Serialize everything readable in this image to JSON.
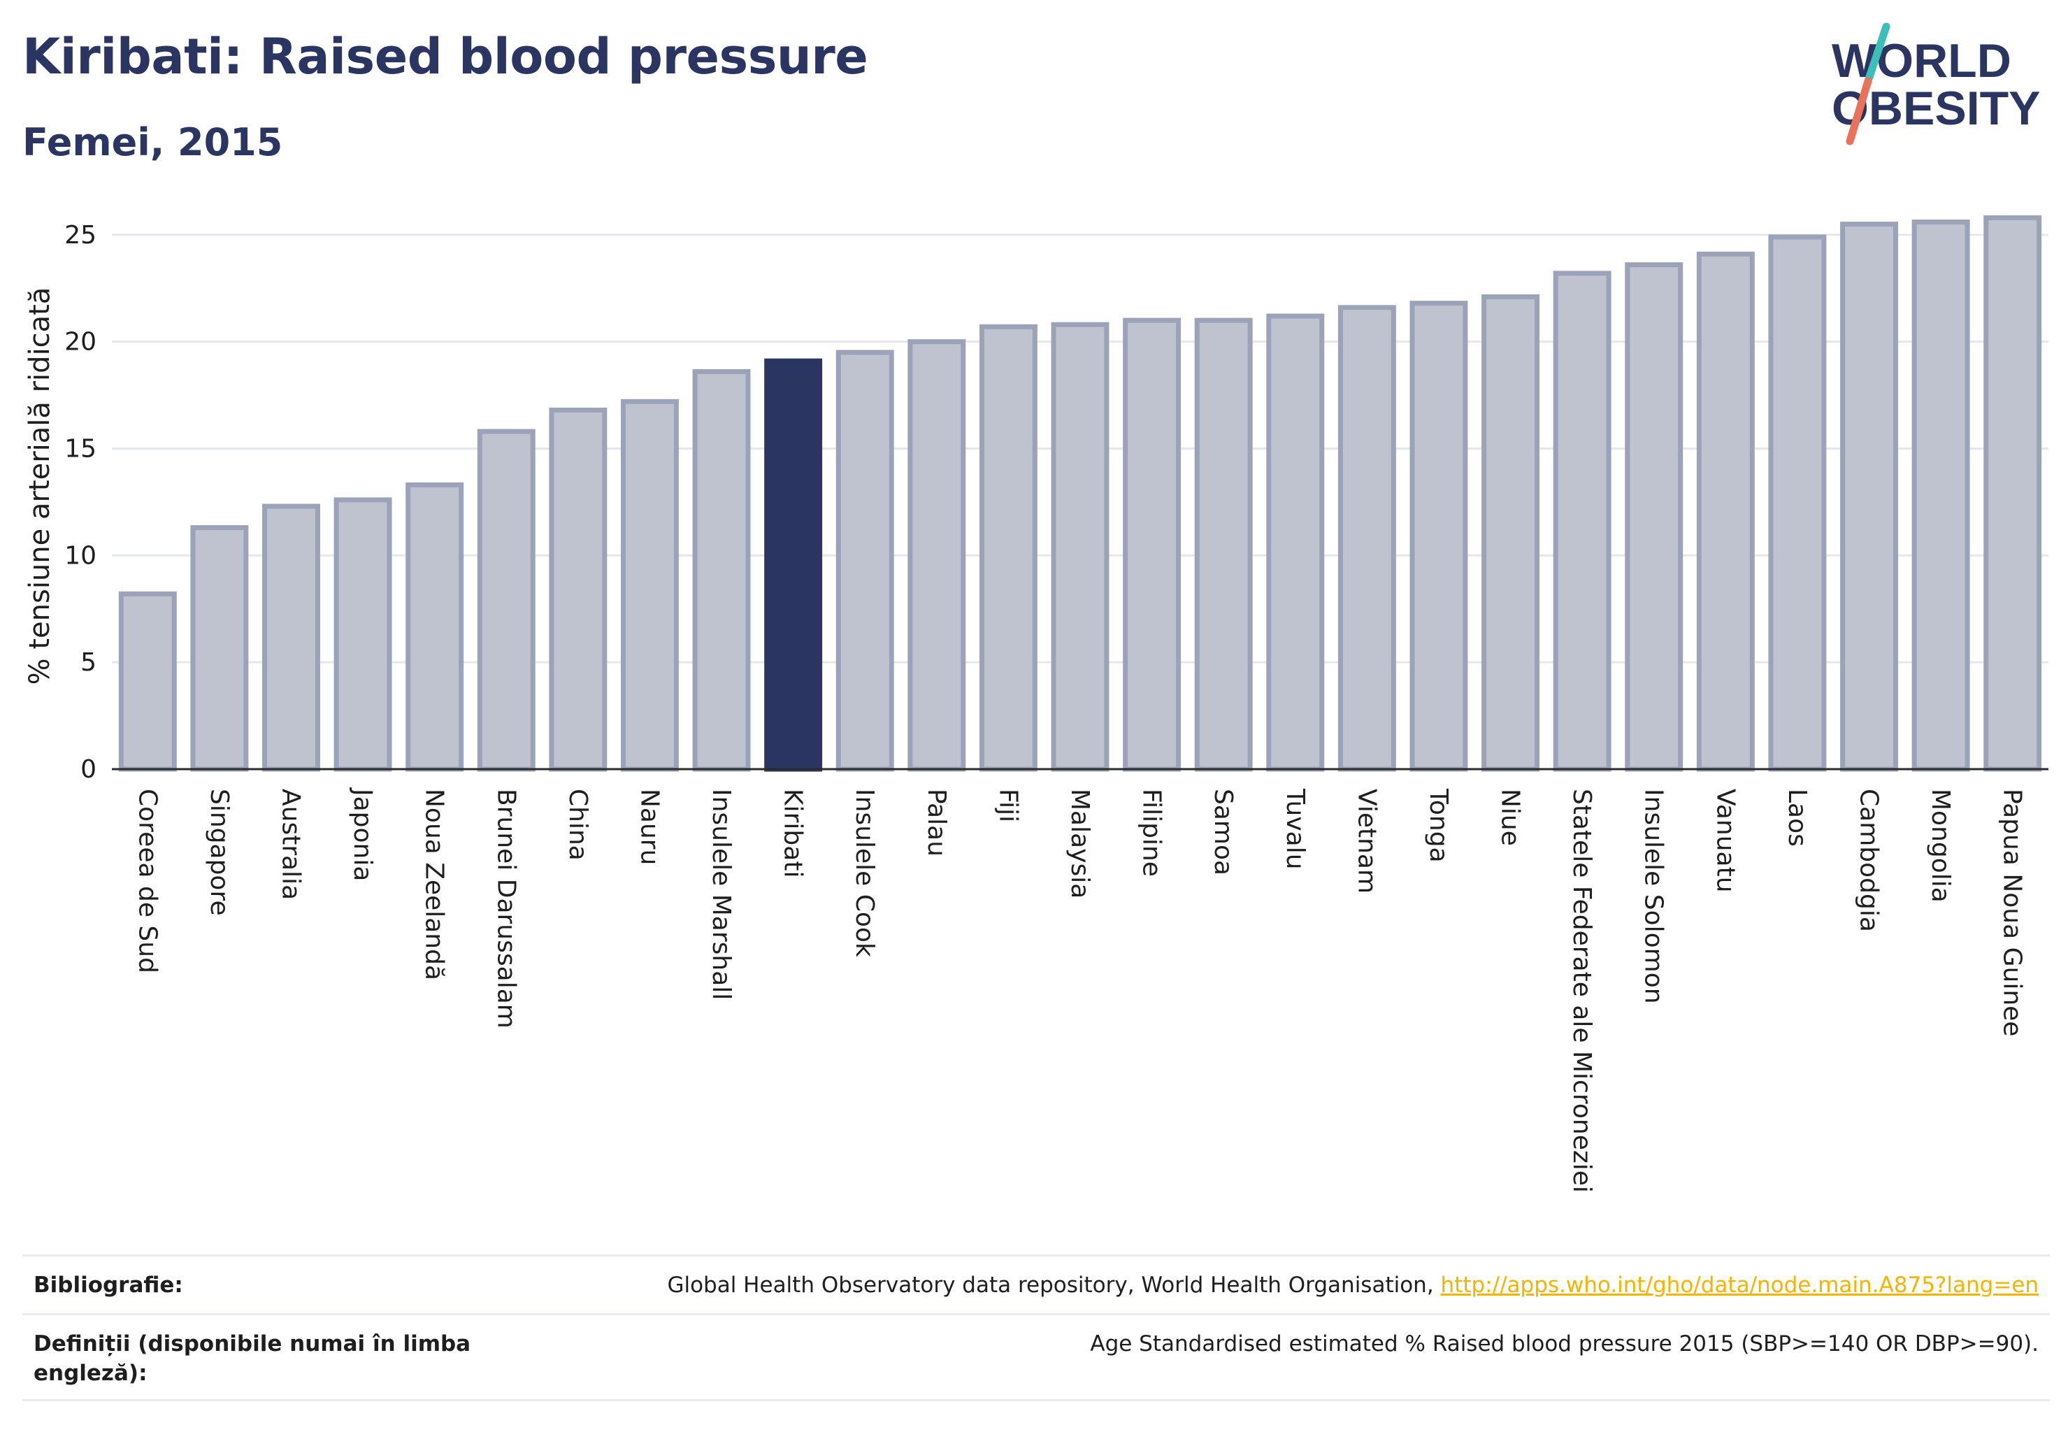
{
  "header": {
    "title": "Kiribati: Raised blood pressure",
    "subtitle": "Femei, 2015"
  },
  "logo": {
    "line1": "WORLD",
    "line2": "OBESITY",
    "accent_colors": [
      "#3cbfb8",
      "#e8735a"
    ]
  },
  "colors": {
    "highlight": "#2b3561",
    "bar_fill": "#bfc2cf",
    "bar_stroke": "#9ca2b8",
    "grid": "#e6e7ec",
    "axis": "#2b2b2b"
  },
  "chart_data": {
    "type": "bar",
    "title": "Kiribati: Raised blood pressure",
    "subtitle": "Femei, 2015",
    "xlabel": "",
    "ylabel": "% tensiune arterială ridicată",
    "ylim": [
      0,
      26.5
    ],
    "yticks": [
      0,
      5,
      10,
      15,
      20,
      25
    ],
    "grid": true,
    "highlight": "Kiribati",
    "categories": [
      "Coreea de Sud",
      "Singapore",
      "Australia",
      "Japonia",
      "Noua Zeelandă",
      "Brunei Darussalam",
      "China",
      "Nauru",
      "Insulele Marshall",
      "Kiribati",
      "Insulele Cook",
      "Palau",
      "Fiji",
      "Malaysia",
      "Filipine",
      "Samoa",
      "Tuvalu",
      "Vietnam",
      "Tonga",
      "Niue",
      "Statele Federate ale Microneziei",
      "Insulele Solomon",
      "Vanuatu",
      "Laos",
      "Cambodgia",
      "Mongolia",
      "Papua Noua Guinee"
    ],
    "values": [
      8.2,
      11.3,
      12.3,
      12.6,
      13.3,
      15.8,
      16.8,
      17.2,
      18.6,
      19.1,
      19.5,
      20.0,
      20.7,
      20.8,
      21.0,
      21.0,
      21.2,
      21.6,
      21.8,
      22.1,
      23.2,
      23.6,
      24.1,
      24.9,
      25.5,
      25.6,
      25.8
    ]
  },
  "footer": {
    "bibliography_label": "Bibliografie:",
    "bibliography_text": "Global Health Observatory data repository, World Health Organisation, ",
    "bibliography_link": "http://apps.who.int/gho/data/node.main.A875?lang=en",
    "definitions_label": "Definiții (disponibile numai în limba engleză):",
    "definitions_text": "Age Standardised estimated % Raised blood pressure 2015 (SBP>=140 OR DBP>=90)."
  }
}
